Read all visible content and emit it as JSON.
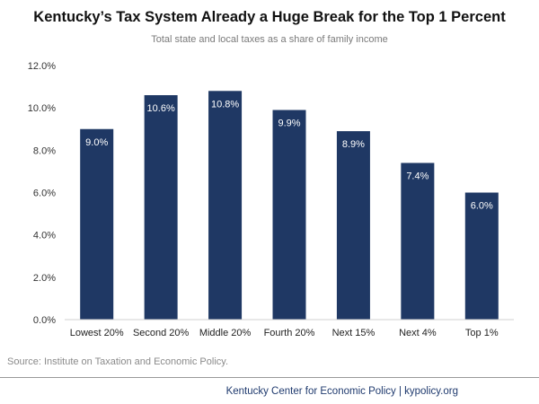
{
  "chart_data": {
    "type": "bar",
    "title": "Kentucky’s Tax System Already a Huge Break for the Top 1 Percent",
    "subtitle": "Total state and local taxes as a share of family income",
    "categories": [
      "Lowest 20%",
      "Second 20%",
      "Middle 20%",
      "Fourth 20%",
      "Next 15%",
      "Next 4%",
      "Top 1%"
    ],
    "values": [
      9.0,
      10.6,
      10.8,
      9.9,
      8.9,
      7.4,
      6.0
    ],
    "data_labels": [
      "9.0%",
      "10.6%",
      "10.8%",
      "9.9%",
      "8.9%",
      "7.4%",
      "6.0%"
    ],
    "y_ticks": [
      0,
      2,
      4,
      6,
      8,
      10,
      12
    ],
    "y_tick_labels": [
      "0.0%",
      "2.0%",
      "4.0%",
      "6.0%",
      "8.0%",
      "10.0%",
      "12.0%"
    ],
    "ylim": [
      0,
      12
    ],
    "xlabel": "",
    "ylabel": "",
    "grid": false,
    "bar_color": "#1f3864",
    "label_color": "#ffffff"
  },
  "source": "Source: Institute on Taxation and Economic Policy.",
  "footer": "Kentucky Center for Economic Policy | kypolicy.org"
}
